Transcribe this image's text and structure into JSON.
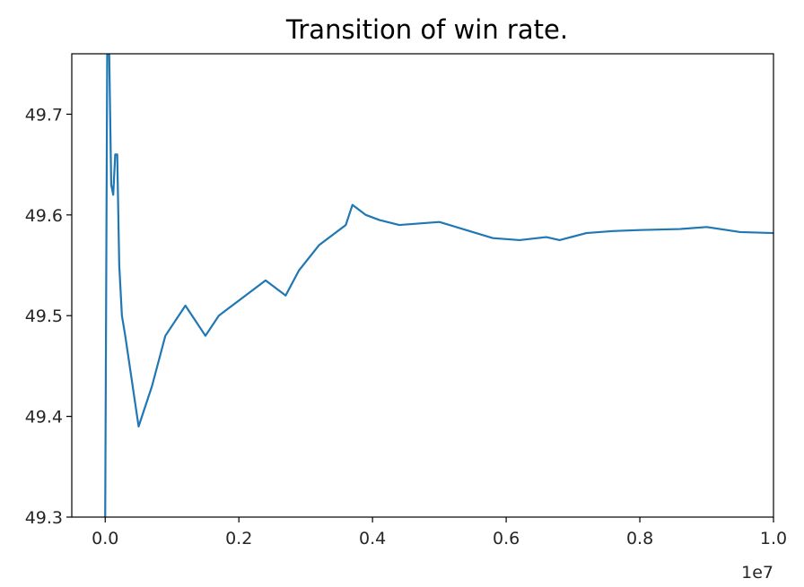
{
  "chart_data": {
    "type": "line",
    "title": "Transition of win rate.",
    "xlabel": "",
    "ylabel": "",
    "x_offset_label": "1e7",
    "xlim": [
      -0.05,
      1.0
    ],
    "ylim": [
      49.3,
      49.76
    ],
    "xticks": [
      {
        "value": 0.0,
        "label": "0.0"
      },
      {
        "value": 0.2,
        "label": "0.2"
      },
      {
        "value": 0.4,
        "label": "0.4"
      },
      {
        "value": 0.6,
        "label": "0.6"
      },
      {
        "value": 0.8,
        "label": "0.8"
      },
      {
        "value": 1.0,
        "label": "1.0"
      }
    ],
    "yticks": [
      {
        "value": 49.3,
        "label": "49.3"
      },
      {
        "value": 49.4,
        "label": "49.4"
      },
      {
        "value": 49.5,
        "label": "49.5"
      },
      {
        "value": 49.6,
        "label": "49.6"
      },
      {
        "value": 49.7,
        "label": "49.7"
      }
    ],
    "grid": false,
    "legend": "none",
    "series": [
      {
        "color": "#1f77b4",
        "x": [
          0.0,
          0.003,
          0.006,
          0.009,
          0.012,
          0.015,
          0.018,
          0.021,
          0.025,
          0.03,
          0.05,
          0.07,
          0.09,
          0.12,
          0.15,
          0.17,
          0.19,
          0.21,
          0.24,
          0.27,
          0.29,
          0.32,
          0.36,
          0.37,
          0.39,
          0.41,
          0.44,
          0.5,
          0.54,
          0.58,
          0.62,
          0.66,
          0.68,
          0.72,
          0.76,
          0.8,
          0.86,
          0.9,
          0.95,
          1.0
        ],
        "y": [
          49.3,
          49.76,
          49.76,
          49.63,
          49.62,
          49.66,
          49.66,
          49.55,
          49.5,
          49.48,
          49.39,
          49.43,
          49.48,
          49.51,
          49.48,
          49.5,
          49.51,
          49.52,
          49.535,
          49.52,
          49.545,
          49.57,
          49.59,
          49.61,
          49.6,
          49.595,
          49.59,
          49.593,
          49.585,
          49.577,
          49.575,
          49.578,
          49.575,
          49.582,
          49.584,
          49.585,
          49.586,
          49.588,
          49.583,
          49.582
        ]
      }
    ]
  }
}
